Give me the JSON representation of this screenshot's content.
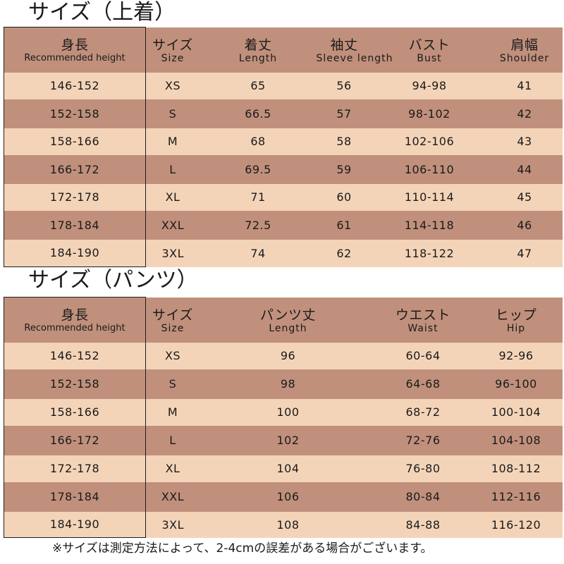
{
  "tops": {
    "title": "サイズ（上着）",
    "headers": [
      {
        "jp": "身長",
        "en": "Recommended height"
      },
      {
        "jp": "サイズ",
        "en": "Size"
      },
      {
        "jp": "着丈",
        "en": "Length"
      },
      {
        "jp": "袖丈",
        "en": "Sleeve length"
      },
      {
        "jp": "バスト",
        "en": "Bust"
      },
      {
        "jp": "肩幅",
        "en": "Shoulder"
      }
    ],
    "rows": [
      [
        "146-152",
        "XS",
        "65",
        "56",
        "94-98",
        "41"
      ],
      [
        "152-158",
        "S",
        "66.5",
        "57",
        "98-102",
        "42"
      ],
      [
        "158-166",
        "M",
        "68",
        "58",
        "102-106",
        "43"
      ],
      [
        "166-172",
        "L",
        "69.5",
        "59",
        "106-110",
        "44"
      ],
      [
        "172-178",
        "XL",
        "71",
        "60",
        "110-114",
        "45"
      ],
      [
        "178-184",
        "XXL",
        "72.5",
        "61",
        "114-118",
        "46"
      ],
      [
        "184-190",
        "3XL",
        "74",
        "62",
        "118-122",
        "47"
      ]
    ]
  },
  "pants": {
    "title": "サイズ（パンツ）",
    "headers": [
      {
        "jp": "身長",
        "en": "Recommended height"
      },
      {
        "jp": "サイズ",
        "en": "Size"
      },
      {
        "jp": "パンツ丈",
        "en": "Length"
      },
      {
        "jp": "ウエスト",
        "en": "Waist"
      },
      {
        "jp": "ヒップ",
        "en": "Hip"
      }
    ],
    "rows": [
      [
        "146-152",
        "XS",
        "96",
        "60-64",
        "92-96"
      ],
      [
        "152-158",
        "S",
        "98",
        "64-68",
        "96-100"
      ],
      [
        "158-166",
        "M",
        "100",
        "68-72",
        "100-104"
      ],
      [
        "166-172",
        "L",
        "102",
        "72-76",
        "104-108"
      ],
      [
        "172-178",
        "XL",
        "104",
        "76-80",
        "108-112"
      ],
      [
        "178-184",
        "XXL",
        "106",
        "80-84",
        "112-116"
      ],
      [
        "184-190",
        "3XL",
        "108",
        "84-88",
        "116-120"
      ]
    ]
  },
  "footnote": "※サイズは測定方法によって、2-4cmの誤差がある場合がございます。",
  "colors": {
    "dark_row": "#c0907c",
    "light_row": "#f4d4b8",
    "border": "#1e1e1e"
  }
}
